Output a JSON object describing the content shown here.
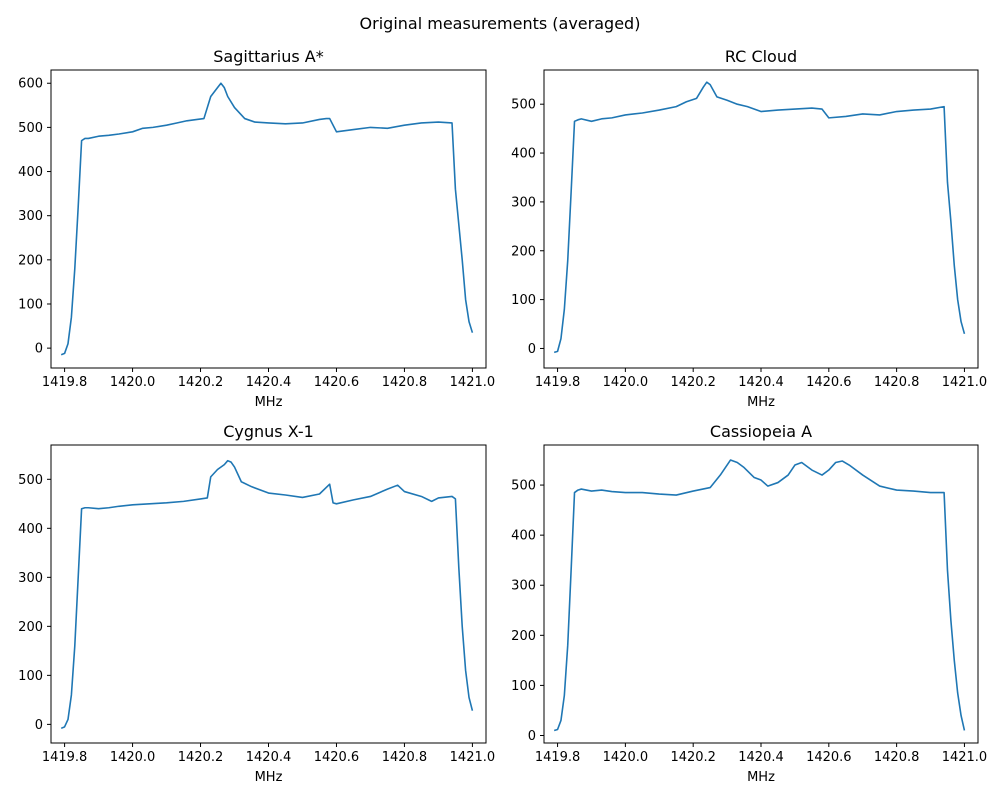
{
  "figure_title": "Original measurements (averaged)",
  "colors": {
    "line": "#1f77b4"
  },
  "chart_data": [
    {
      "type": "line",
      "title": "Sagittarius A*",
      "xlabel": "MHz",
      "ylabel": "",
      "xlim": [
        1419.76,
        1421.04
      ],
      "ylim": [
        -45,
        630
      ],
      "xticks": [
        1419.8,
        1420.0,
        1420.2,
        1420.4,
        1420.6,
        1420.8,
        1421.0
      ],
      "xticklabels": [
        "1419.8",
        "1420.0",
        "1420.2",
        "1420.4",
        "1420.6",
        "1420.8",
        "1421.0"
      ],
      "yticks": [
        0,
        100,
        200,
        300,
        400,
        500,
        600
      ],
      "yticklabels": [
        "0",
        "100",
        "200",
        "300",
        "400",
        "500",
        "600"
      ],
      "grid": false,
      "series": [
        {
          "x": [
            1419.79,
            1419.8,
            1419.81,
            1419.82,
            1419.83,
            1419.84,
            1419.85,
            1419.86,
            1419.87,
            1419.9,
            1419.93,
            1419.96,
            1420.0,
            1420.03,
            1420.06,
            1420.1,
            1420.13,
            1420.16,
            1420.19,
            1420.21,
            1420.23,
            1420.25,
            1420.26,
            1420.27,
            1420.28,
            1420.3,
            1420.33,
            1420.36,
            1420.4,
            1420.45,
            1420.5,
            1420.55,
            1420.57,
            1420.58,
            1420.6,
            1420.65,
            1420.7,
            1420.75,
            1420.8,
            1420.85,
            1420.9,
            1420.94,
            1420.95,
            1420.97,
            1420.98,
            1420.99,
            1421.0
          ],
          "y": [
            -15,
            -12,
            10,
            70,
            180,
            320,
            470,
            475,
            475,
            480,
            482,
            485,
            490,
            498,
            500,
            505,
            510,
            515,
            518,
            520,
            570,
            590,
            600,
            590,
            570,
            545,
            520,
            512,
            510,
            508,
            510,
            518,
            520,
            520,
            490,
            495,
            500,
            498,
            505,
            510,
            512,
            510,
            360,
            200,
            110,
            60,
            35
          ]
        }
      ]
    },
    {
      "type": "line",
      "title": "RC Cloud",
      "xlabel": "MHz",
      "ylabel": "",
      "xlim": [
        1419.76,
        1421.04
      ],
      "ylim": [
        -40,
        570
      ],
      "xticks": [
        1419.8,
        1420.0,
        1420.2,
        1420.4,
        1420.6,
        1420.8,
        1421.0
      ],
      "xticklabels": [
        "1419.8",
        "1420.0",
        "1420.2",
        "1420.4",
        "1420.6",
        "1420.8",
        "1421.0"
      ],
      "yticks": [
        0,
        100,
        200,
        300,
        400,
        500
      ],
      "yticklabels": [
        "0",
        "100",
        "200",
        "300",
        "400",
        "500"
      ],
      "grid": false,
      "series": [
        {
          "x": [
            1419.79,
            1419.8,
            1419.81,
            1419.82,
            1419.83,
            1419.84,
            1419.85,
            1419.86,
            1419.87,
            1419.9,
            1419.93,
            1419.96,
            1420.0,
            1420.05,
            1420.1,
            1420.15,
            1420.18,
            1420.21,
            1420.23,
            1420.24,
            1420.25,
            1420.27,
            1420.3,
            1420.33,
            1420.36,
            1420.4,
            1420.45,
            1420.5,
            1420.55,
            1420.58,
            1420.6,
            1420.65,
            1420.7,
            1420.75,
            1420.8,
            1420.85,
            1420.9,
            1420.94,
            1420.95,
            1420.96,
            1420.97,
            1420.98,
            1420.99,
            1421.0
          ],
          "y": [
            -8,
            -6,
            20,
            80,
            180,
            320,
            465,
            468,
            470,
            465,
            470,
            472,
            478,
            482,
            488,
            495,
            505,
            512,
            535,
            545,
            540,
            515,
            508,
            500,
            495,
            485,
            488,
            490,
            492,
            490,
            472,
            475,
            480,
            478,
            485,
            488,
            490,
            495,
            340,
            260,
            170,
            100,
            55,
            30
          ]
        }
      ]
    },
    {
      "type": "line",
      "title": "Cygnus X-1",
      "xlabel": "MHz",
      "ylabel": "",
      "xlim": [
        1419.76,
        1421.04
      ],
      "ylim": [
        -38,
        570
      ],
      "xticks": [
        1419.8,
        1420.0,
        1420.2,
        1420.4,
        1420.6,
        1420.8,
        1421.0
      ],
      "xticklabels": [
        "1419.8",
        "1420.0",
        "1420.2",
        "1420.4",
        "1420.6",
        "1420.8",
        "1421.0"
      ],
      "yticks": [
        0,
        100,
        200,
        300,
        400,
        500
      ],
      "yticklabels": [
        "0",
        "100",
        "200",
        "300",
        "400",
        "500"
      ],
      "grid": false,
      "series": [
        {
          "x": [
            1419.79,
            1419.8,
            1419.81,
            1419.82,
            1419.83,
            1419.84,
            1419.85,
            1419.86,
            1419.87,
            1419.9,
            1419.93,
            1419.96,
            1420.0,
            1420.05,
            1420.1,
            1420.15,
            1420.2,
            1420.22,
            1420.23,
            1420.25,
            1420.27,
            1420.28,
            1420.29,
            1420.3,
            1420.32,
            1420.35,
            1420.4,
            1420.45,
            1420.5,
            1420.55,
            1420.58,
            1420.59,
            1420.6,
            1420.65,
            1420.7,
            1420.75,
            1420.78,
            1420.8,
            1420.85,
            1420.88,
            1420.9,
            1420.94,
            1420.95,
            1420.96,
            1420.97,
            1420.98,
            1420.99,
            1421.0
          ],
          "y": [
            -8,
            -5,
            10,
            60,
            160,
            300,
            440,
            442,
            442,
            440,
            442,
            445,
            448,
            450,
            452,
            455,
            460,
            462,
            505,
            520,
            530,
            538,
            535,
            525,
            495,
            485,
            472,
            468,
            463,
            470,
            490,
            452,
            450,
            458,
            465,
            480,
            488,
            475,
            465,
            455,
            462,
            465,
            460,
            320,
            200,
            110,
            55,
            28
          ]
        }
      ]
    },
    {
      "type": "line",
      "title": "Cassiopeia A",
      "xlabel": "MHz",
      "ylabel": "",
      "xlim": [
        1419.76,
        1421.04
      ],
      "ylim": [
        -15,
        580
      ],
      "xticks": [
        1419.8,
        1420.0,
        1420.2,
        1420.4,
        1420.6,
        1420.8,
        1421.0
      ],
      "xticklabels": [
        "1419.8",
        "1420.0",
        "1420.2",
        "1420.4",
        "1420.6",
        "1420.8",
        "1421.0"
      ],
      "yticks": [
        0,
        100,
        200,
        300,
        400,
        500
      ],
      "yticklabels": [
        "0",
        "100",
        "200",
        "300",
        "400",
        "500"
      ],
      "grid": false,
      "series": [
        {
          "x": [
            1419.79,
            1419.8,
            1419.81,
            1419.82,
            1419.83,
            1419.84,
            1419.85,
            1419.86,
            1419.87,
            1419.9,
            1419.93,
            1419.96,
            1420.0,
            1420.05,
            1420.1,
            1420.15,
            1420.2,
            1420.25,
            1420.28,
            1420.3,
            1420.31,
            1420.33,
            1420.35,
            1420.38,
            1420.4,
            1420.42,
            1420.45,
            1420.48,
            1420.5,
            1420.52,
            1420.55,
            1420.58,
            1420.6,
            1420.62,
            1420.64,
            1420.66,
            1420.7,
            1420.75,
            1420.8,
            1420.85,
            1420.9,
            1420.94,
            1420.95,
            1420.96,
            1420.97,
            1420.98,
            1420.99,
            1421.0
          ],
          "y": [
            10,
            12,
            30,
            80,
            180,
            330,
            485,
            490,
            492,
            488,
            490,
            487,
            485,
            485,
            482,
            480,
            488,
            495,
            520,
            540,
            550,
            545,
            535,
            515,
            510,
            498,
            505,
            520,
            540,
            545,
            530,
            520,
            530,
            545,
            548,
            540,
            520,
            498,
            490,
            488,
            485,
            485,
            330,
            230,
            150,
            85,
            40,
            10
          ]
        }
      ]
    }
  ]
}
